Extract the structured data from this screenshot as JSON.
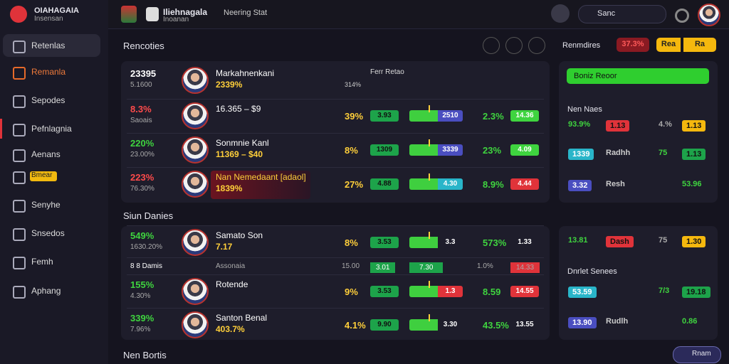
{
  "sidebar": {
    "logo": "OIAHAGAIA",
    "logo_sub": "Insensan",
    "items": [
      "Retenlas",
      "Remanla",
      "Sepodes",
      "Pefnlagnia",
      "Aenans",
      "Bmear",
      "Senyhe",
      "Snsedos",
      "Femh",
      "Aphang"
    ]
  },
  "topbar": {
    "brand": "Iliehnagala",
    "brand_sub": "Inoanan",
    "nav": "Neering Stat",
    "search": "Sanc"
  },
  "main": {
    "title": "Rencoties",
    "filter": "Renmdires",
    "stats": [
      "37.3%",
      "Rea",
      "Ra"
    ],
    "sections": [
      {
        "rows": [
          {
            "pct": "23395",
            "sub": "5.1600",
            "name": "Markahnenkani",
            "detail": "2339%",
            "mid": "Ferr Retao",
            "mid_sub": "314%"
          },
          {
            "pct": "8.3%",
            "sub": "Saoais",
            "name": "16.365 – $9",
            "detail": "",
            "odds": "39%",
            "b1": "3.93",
            "bar": "2510",
            "odds2": "2.3%",
            "b2": "14.36"
          },
          {
            "pct": "220%",
            "sub": "23.00%",
            "name": "Sonmnie Kanl",
            "detail": "11369 – $40",
            "odds": "8%",
            "b1": "1309",
            "bar": "3339",
            "odds2": "23%",
            "b2": "4.09"
          },
          {
            "pct": "223%",
            "sub": "76.30%",
            "name": "Nan Nemedaant [adaol]",
            "detail": "1839%",
            "odds": "27%",
            "b1": "4.88",
            "bar": "4.30",
            "odds2": "8.9%",
            "b2": "4.44"
          }
        ]
      },
      {
        "title": "Siun Danies",
        "rows": [
          {
            "pct": "549%",
            "sub": "1630.20%",
            "name": "Samato Son",
            "detail": "7.17",
            "odds": "8%",
            "b1": "3.53",
            "bar": "3.3",
            "odds2": "573%",
            "b2": "1.33"
          },
          {
            "cells": [
              "8 8 Damis",
              "Assonaia",
              "15.00",
              "3.01",
              "7.30",
              "1.0%",
              "14.33"
            ]
          },
          {
            "pct": "155%",
            "sub": "4.30%",
            "name": "Rotende",
            "detail": "",
            "odds": "9%",
            "b1": "3.53",
            "bar": "1.3",
            "odds2": "8.59",
            "b2": "14.55"
          },
          {
            "pct": "339%",
            "sub": "7.96%",
            "name": "Santon Benal",
            "detail": "403.7%",
            "odds": "4.1%",
            "b1": "9.90",
            "bar": "3.30",
            "odds2": "43.5%",
            "b2": "13.55"
          }
        ]
      }
    ],
    "footer": "Nen Bortis"
  },
  "side": {
    "button": "Boniz Reoor",
    "groups": [
      {
        "title": "Nen Naes",
        "rows": [
          [
            "93.9%",
            "1.13",
            "4.%",
            "1.13"
          ],
          [
            "1339",
            "Radhh",
            "75",
            "1.13"
          ],
          [
            "3.32",
            "Resh",
            "",
            "53.96"
          ]
        ]
      },
      {
        "title": "Dnrlet Senees",
        "rows": [
          [
            "13.81",
            "Dash",
            "75",
            "1.30"
          ],
          [
            "53.59",
            "",
            "7/3",
            "19.18"
          ],
          [
            "13.90",
            "Rudlh",
            "",
            "0.86"
          ]
        ]
      }
    ],
    "bottom": "Rnam"
  }
}
